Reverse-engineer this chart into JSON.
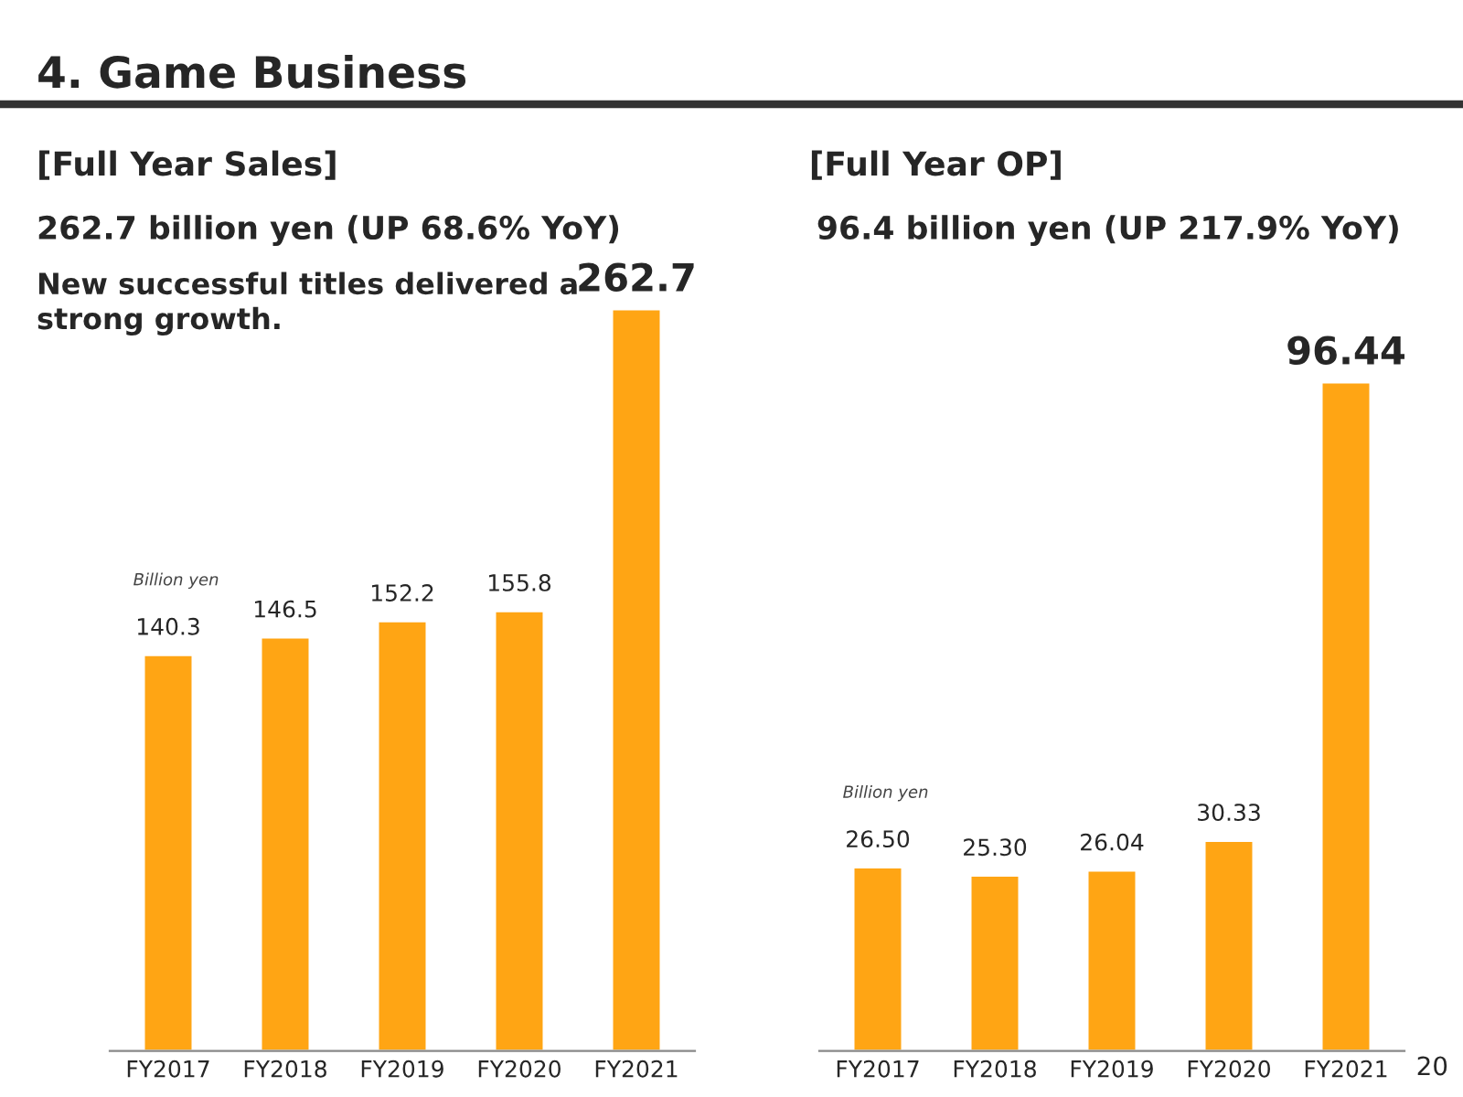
{
  "chart_data": [
    {
      "type": "bar",
      "title": "[Full Year Sales]",
      "subtitle": "262.7 billion yen (UP 68.6% YoY)",
      "annotations": [
        "4. Game Business",
        "New successful titles delivered a\nstrong growth.",
        "Billion yen"
      ],
      "categories": [
        "FY2017",
        "FY2018",
        "FY2019",
        "FY2020",
        "FY2021"
      ],
      "values": [
        140.3,
        146.5,
        152.2,
        155.8,
        262.7
      ],
      "value_labels": [
        "140.3",
        "146.5",
        "152.2",
        "155.8",
        "262.7"
      ],
      "color": "#ffa514",
      "tick_labels": "x",
      "grid": false,
      "legend": false
    },
    {
      "type": "bar",
      "title": "[Full Year OP]",
      "subtitle": "96.4 billion yen (UP 217.9% YoY)",
      "annotations": [
        "Billion yen",
        "20"
      ],
      "categories": [
        "FY2017",
        "FY2018",
        "FY2019",
        "FY2020",
        "FY2021"
      ],
      "values": [
        26.5,
        25.3,
        26.04,
        30.33,
        96.44
      ],
      "value_labels": [
        "26.50",
        "25.30",
        "26.04",
        "30.33",
        "96.44"
      ],
      "color": "#ffa514",
      "tick_labels": "x",
      "grid": false,
      "legend": false
    }
  ]
}
